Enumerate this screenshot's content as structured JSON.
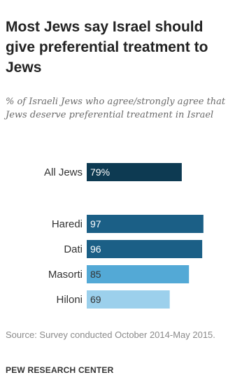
{
  "chart_data": {
    "type": "bar",
    "orientation": "horizontal",
    "title": "Most Jews say Israel should give preferential treatment to Jews",
    "subtitle": "% of Israeli Jews who agree/strongly agree that Jews deserve preferential treatment in Israel",
    "categories": [
      "All Jews",
      "Haredi",
      "Dati",
      "Masorti",
      "Hiloni"
    ],
    "values": [
      79,
      97,
      96,
      85,
      69
    ],
    "value_labels": [
      "79%",
      "97",
      "96",
      "85",
      "69"
    ],
    "bar_colors": [
      "#0d3a52",
      "#1b5f86",
      "#1b5f86",
      "#53a9d6",
      "#9cd0ec"
    ],
    "value_text_colors": [
      "#ffffff",
      "#ffffff",
      "#ffffff",
      "#333333",
      "#333333"
    ],
    "xlim": [
      0,
      100
    ],
    "grid": false,
    "legend": "none"
  },
  "footer": {
    "source": "Source: Survey conducted October 2014-May 2015.",
    "credit": "PEW RESEARCH CENTER"
  }
}
